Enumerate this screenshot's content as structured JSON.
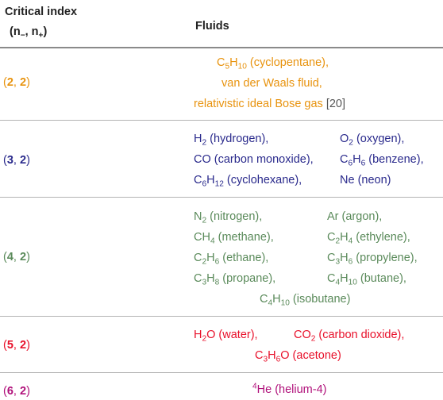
{
  "table": {
    "header": {
      "col1_line1": "Critical index",
      "col1_line2": "(n−, n+)",
      "col2": "Fluids"
    },
    "rows": [
      {
        "color": "#e8930e",
        "index": {
          "a": "2",
          "b": "2"
        },
        "fluids": [
          "C5H10 (cyclopentane),",
          "van der Waals fluid,",
          "relativistic ideal Bose gas [20]"
        ]
      },
      {
        "color": "#2a2a8c",
        "index": {
          "a": "3",
          "b": "2"
        },
        "fluids": [
          "H2 (hydrogen),",
          "O2 (oxygen),",
          "CO (carbon monoxide),",
          "C6H6 (benzene),",
          "C6H12 (cyclohexane),",
          "Ne (neon)"
        ]
      },
      {
        "color": "#5a8a5a",
        "index": {
          "a": "4",
          "b": "2"
        },
        "fluids": [
          "N2 (nitrogen),",
          "Ar (argon),",
          "CH4 (methane),",
          "C2H4 (ethylene),",
          "C2H6 (ethane),",
          "C3H6 (propylene),",
          "C3H8 (propane),",
          "C4H10 (butane),",
          "C4H10 (isobutane)"
        ]
      },
      {
        "color": "#e8102a",
        "index": {
          "a": "5",
          "b": "2"
        },
        "fluids": [
          "H2O (water),",
          "CO2 (carbon dioxide),",
          "C3H6O (acetone)"
        ]
      },
      {
        "color": "#b0107a",
        "index": {
          "a": "6",
          "b": "2"
        },
        "fluids": [
          "4He (helium-4)"
        ]
      }
    ]
  }
}
